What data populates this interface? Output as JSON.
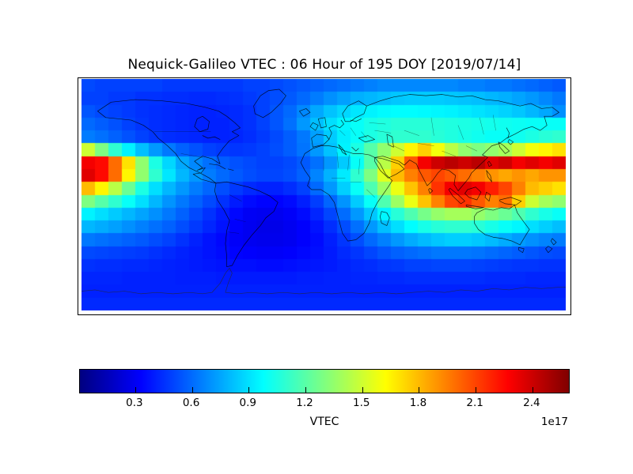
{
  "title": "Nequick-Galileo VTEC : 06 Hour of 195 DOY [2019/07/14]",
  "chart_data": {
    "type": "heatmap",
    "title": "Nequick-Galileo VTEC : 06 Hour of 195 DOY [2019/07/14]",
    "colormap": "jet",
    "colorbar_label": "VTEC",
    "scale_label": "1e17",
    "colorbar_ticks": [
      0.3,
      0.6,
      0.9,
      1.2,
      1.5,
      1.8,
      2.1,
      2.4
    ],
    "colorbar_vmin": 0.012,
    "colorbar_vmax": 2.597,
    "legend_position": "bottom",
    "grid": false,
    "x_range_lon": [
      -180,
      180
    ],
    "y_range_lat": [
      90,
      -90
    ],
    "cell_deg": 10,
    "units": "electrons/m^2 x 1e17",
    "values": [
      [
        0.52,
        0.5,
        0.5,
        0.5,
        0.5,
        0.5,
        0.48,
        0.48,
        0.48,
        0.48,
        0.48,
        0.48,
        0.5,
        0.5,
        0.52,
        0.54,
        0.56,
        0.58,
        0.6,
        0.62,
        0.64,
        0.66,
        0.68,
        0.68,
        0.68,
        0.68,
        0.68,
        0.68,
        0.66,
        0.66,
        0.64,
        0.64,
        0.62,
        0.6,
        0.58,
        0.56
      ],
      [
        0.5,
        0.5,
        0.48,
        0.48,
        0.46,
        0.46,
        0.45,
        0.45,
        0.44,
        0.44,
        0.45,
        0.46,
        0.48,
        0.5,
        0.53,
        0.56,
        0.6,
        0.65,
        0.7,
        0.74,
        0.78,
        0.8,
        0.82,
        0.84,
        0.85,
        0.85,
        0.85,
        0.84,
        0.83,
        0.82,
        0.8,
        0.78,
        0.75,
        0.72,
        0.68,
        0.64
      ],
      [
        0.55,
        0.52,
        0.5,
        0.48,
        0.46,
        0.45,
        0.44,
        0.43,
        0.42,
        0.42,
        0.43,
        0.44,
        0.46,
        0.5,
        0.55,
        0.6,
        0.68,
        0.76,
        0.83,
        0.88,
        0.92,
        0.95,
        0.97,
        0.98,
        0.98,
        0.97,
        0.96,
        0.95,
        0.93,
        0.91,
        0.89,
        0.87,
        0.84,
        0.8,
        0.76,
        0.7
      ],
      [
        0.6,
        0.57,
        0.54,
        0.5,
        0.47,
        0.45,
        0.44,
        0.43,
        0.42,
        0.42,
        0.42,
        0.44,
        0.46,
        0.5,
        0.55,
        0.62,
        0.72,
        0.82,
        0.9,
        0.96,
        1.0,
        1.04,
        1.06,
        1.08,
        1.08,
        1.08,
        1.07,
        1.06,
        1.05,
        1.04,
        1.03,
        1.02,
        1.01,
        1.0,
        1.0,
        1.0
      ],
      [
        0.65,
        0.62,
        0.58,
        0.54,
        0.5,
        0.47,
        0.45,
        0.44,
        0.43,
        0.42,
        0.42,
        0.43,
        0.45,
        0.48,
        0.52,
        0.57,
        0.64,
        0.74,
        0.85,
        0.94,
        1.0,
        1.05,
        1.08,
        1.1,
        1.1,
        1.1,
        1.08,
        1.06,
        1.04,
        1.02,
        1.0,
        1.0,
        1.02,
        1.05,
        1.08,
        1.1
      ],
      [
        1.5,
        1.3,
        1.1,
        0.95,
        0.82,
        0.72,
        0.64,
        0.58,
        0.54,
        0.5,
        0.48,
        0.47,
        0.48,
        0.5,
        0.53,
        0.57,
        0.63,
        0.72,
        0.83,
        0.95,
        1.05,
        1.2,
        1.35,
        1.5,
        1.65,
        1.75,
        1.6,
        1.45,
        1.35,
        1.3,
        1.35,
        1.4,
        1.5,
        1.6,
        1.65,
        1.7
      ],
      [
        2.3,
        2.25,
        2.0,
        1.7,
        1.35,
        1.05,
        0.88,
        0.76,
        0.68,
        0.62,
        0.57,
        0.54,
        0.52,
        0.5,
        0.5,
        0.52,
        0.56,
        0.62,
        0.72,
        0.85,
        1.0,
        1.2,
        1.45,
        1.75,
        2.05,
        2.3,
        2.4,
        2.45,
        2.4,
        2.45,
        2.35,
        2.4,
        2.3,
        2.35,
        2.3,
        2.35
      ],
      [
        2.35,
        2.25,
        2.0,
        1.65,
        1.35,
        1.1,
        0.92,
        0.8,
        0.72,
        0.65,
        0.6,
        0.56,
        0.53,
        0.51,
        0.51,
        0.53,
        0.58,
        0.67,
        0.79,
        0.93,
        1.1,
        1.3,
        1.55,
        1.8,
        1.95,
        2.05,
        2.1,
        2.05,
        2.0,
        1.95,
        1.9,
        1.85,
        1.9,
        1.85,
        1.9,
        1.9
      ],
      [
        1.8,
        1.65,
        1.45,
        1.25,
        1.05,
        0.9,
        0.8,
        0.72,
        0.65,
        0.59,
        0.53,
        0.48,
        0.44,
        0.42,
        0.42,
        0.45,
        0.5,
        0.6,
        0.72,
        0.86,
        1.0,
        1.18,
        1.38,
        1.58,
        1.78,
        1.95,
        2.15,
        2.3,
        2.35,
        2.3,
        2.2,
        2.1,
        1.95,
        1.8,
        1.75,
        1.7
      ],
      [
        1.3,
        1.2,
        1.1,
        1.0,
        0.9,
        0.8,
        0.71,
        0.64,
        0.58,
        0.52,
        0.46,
        0.4,
        0.36,
        0.34,
        0.34,
        0.36,
        0.41,
        0.49,
        0.59,
        0.71,
        0.85,
        1.0,
        1.18,
        1.38,
        1.58,
        1.78,
        1.95,
        2.1,
        2.15,
        2.05,
        1.95,
        2.0,
        1.75,
        1.5,
        1.4,
        1.35
      ],
      [
        0.95,
        0.9,
        0.85,
        0.8,
        0.75,
        0.7,
        0.64,
        0.58,
        0.52,
        0.46,
        0.4,
        0.35,
        0.31,
        0.3,
        0.3,
        0.32,
        0.36,
        0.43,
        0.51,
        0.61,
        0.72,
        0.84,
        0.96,
        1.08,
        1.18,
        1.28,
        1.36,
        1.4,
        1.4,
        1.36,
        1.3,
        1.25,
        1.18,
        1.1,
        1.04,
        1.0
      ],
      [
        0.8,
        0.77,
        0.74,
        0.7,
        0.66,
        0.62,
        0.58,
        0.53,
        0.48,
        0.43,
        0.38,
        0.33,
        0.3,
        0.28,
        0.28,
        0.3,
        0.33,
        0.38,
        0.45,
        0.53,
        0.62,
        0.72,
        0.82,
        0.9,
        0.98,
        1.04,
        1.08,
        1.1,
        1.1,
        1.08,
        1.04,
        1.0,
        0.96,
        0.9,
        0.86,
        0.82
      ],
      [
        0.64,
        0.62,
        0.6,
        0.58,
        0.56,
        0.53,
        0.5,
        0.46,
        0.42,
        0.38,
        0.35,
        0.32,
        0.3,
        0.29,
        0.29,
        0.3,
        0.33,
        0.36,
        0.41,
        0.47,
        0.53,
        0.6,
        0.66,
        0.72,
        0.77,
        0.81,
        0.84,
        0.86,
        0.86,
        0.84,
        0.81,
        0.77,
        0.73,
        0.7,
        0.67,
        0.65
      ],
      [
        0.52,
        0.51,
        0.5,
        0.49,
        0.48,
        0.46,
        0.44,
        0.42,
        0.4,
        0.38,
        0.36,
        0.34,
        0.33,
        0.32,
        0.32,
        0.33,
        0.35,
        0.37,
        0.4,
        0.44,
        0.47,
        0.51,
        0.55,
        0.58,
        0.6,
        0.62,
        0.64,
        0.64,
        0.64,
        0.63,
        0.61,
        0.59,
        0.57,
        0.55,
        0.53,
        0.52
      ],
      [
        0.46,
        0.45,
        0.45,
        0.44,
        0.44,
        0.43,
        0.42,
        0.41,
        0.4,
        0.39,
        0.38,
        0.37,
        0.37,
        0.36,
        0.36,
        0.37,
        0.38,
        0.39,
        0.4,
        0.42,
        0.44,
        0.45,
        0.47,
        0.48,
        0.5,
        0.5,
        0.51,
        0.51,
        0.51,
        0.5,
        0.49,
        0.48,
        0.47,
        0.47,
        0.46,
        0.46
      ],
      [
        0.43,
        0.43,
        0.43,
        0.42,
        0.42,
        0.42,
        0.42,
        0.41,
        0.41,
        0.41,
        0.4,
        0.4,
        0.4,
        0.4,
        0.4,
        0.4,
        0.41,
        0.41,
        0.42,
        0.42,
        0.43,
        0.43,
        0.44,
        0.44,
        0.45,
        0.45,
        0.45,
        0.45,
        0.45,
        0.45,
        0.44,
        0.44,
        0.44,
        0.43,
        0.43,
        0.43
      ],
      [
        0.42,
        0.42,
        0.42,
        0.42,
        0.42,
        0.42,
        0.42,
        0.42,
        0.42,
        0.42,
        0.42,
        0.42,
        0.42,
        0.42,
        0.42,
        0.42,
        0.42,
        0.42,
        0.42,
        0.42,
        0.42,
        0.42,
        0.42,
        0.42,
        0.42,
        0.42,
        0.42,
        0.42,
        0.42,
        0.42,
        0.42,
        0.42,
        0.42,
        0.42,
        0.42,
        0.42
      ],
      [
        0.44,
        0.44,
        0.44,
        0.44,
        0.44,
        0.44,
        0.44,
        0.44,
        0.44,
        0.44,
        0.44,
        0.44,
        0.44,
        0.44,
        0.44,
        0.44,
        0.44,
        0.44,
        0.44,
        0.44,
        0.44,
        0.44,
        0.44,
        0.44,
        0.44,
        0.44,
        0.44,
        0.44,
        0.44,
        0.44,
        0.44,
        0.44,
        0.44,
        0.44,
        0.44,
        0.44
      ]
    ]
  }
}
